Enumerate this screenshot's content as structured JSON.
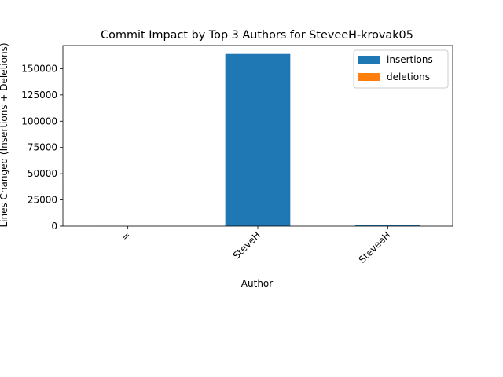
{
  "chart_data": {
    "type": "bar",
    "stacked": true,
    "title": "Commit Impact by Top 3 Authors for SteveeH-krovak05",
    "xlabel": "Author",
    "ylabel": "Lines Changed (Insertions + Deletions)",
    "categories": [
      "=",
      "SteveH",
      "SteveeH"
    ],
    "series": [
      {
        "name": "insertions",
        "color": "#1f77b4",
        "values": [
          30,
          164000,
          1100
        ]
      },
      {
        "name": "deletions",
        "color": "#ff7f0e",
        "values": [
          0,
          0,
          0
        ]
      }
    ],
    "ylim": [
      0,
      172000
    ],
    "yticks": [
      0,
      25000,
      50000,
      75000,
      100000,
      125000,
      150000
    ],
    "legend_position": "top-right",
    "grid": false
  }
}
